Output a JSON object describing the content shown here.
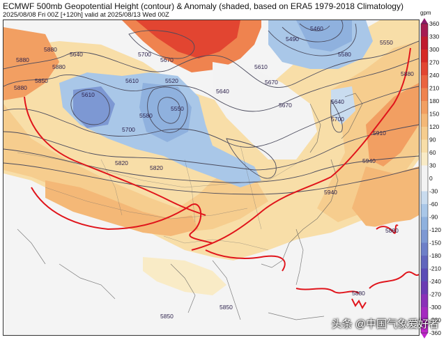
{
  "header": {
    "title": "ECMWF 500mb Geopotential Height (contour) & Anomaly (shaded, based on ERA5 1979-2018 Climatology)",
    "subtitle": "2025/08/08 Fri 00Z [+120h] valid at 2025/08/13 Wed 00Z"
  },
  "colorbar": {
    "unit": "gpm",
    "ticks": [
      "360",
      "330",
      "300",
      "270",
      "240",
      "210",
      "180",
      "150",
      "120",
      "90",
      "60",
      "30",
      "0",
      "-30",
      "-60",
      "-90",
      "-120",
      "-150",
      "-180",
      "-210",
      "-240",
      "-270",
      "-300",
      "-330",
      "-360"
    ],
    "colors": [
      "#8c1a6b",
      "#a51b52",
      "#c01b2e",
      "#d62a25",
      "#e24531",
      "#ea6440",
      "#ef834f",
      "#f29f62",
      "#f4b877",
      "#f6cd8e",
      "#f8dea8",
      "#f9ebc6",
      "#f3f3f3",
      "#f3f3f3",
      "#c9dcef",
      "#a9c7e8",
      "#8fb1de",
      "#7d98d3",
      "#6d7fc8",
      "#6165bd",
      "#5b4cb6",
      "#6a3bb3",
      "#8a30b8",
      "#a42ac0",
      "#c026cc"
    ]
  },
  "contour_labels": [
    "5700",
    "5640",
    "5670",
    "5610",
    "5520",
    "5550",
    "5610",
    "5580",
    "5640",
    "5700",
    "5460",
    "5490",
    "5550",
    "5580",
    "5610",
    "5670",
    "5640",
    "5670",
    "5700",
    "5820",
    "5880",
    "5910",
    "5940",
    "5940",
    "5880",
    "5880",
    "5850",
    "5850",
    "5880",
    "5850",
    "5880",
    "5880",
    "5820",
    "5880"
  ],
  "watermark": "头条 @中国气象爱好者"
}
